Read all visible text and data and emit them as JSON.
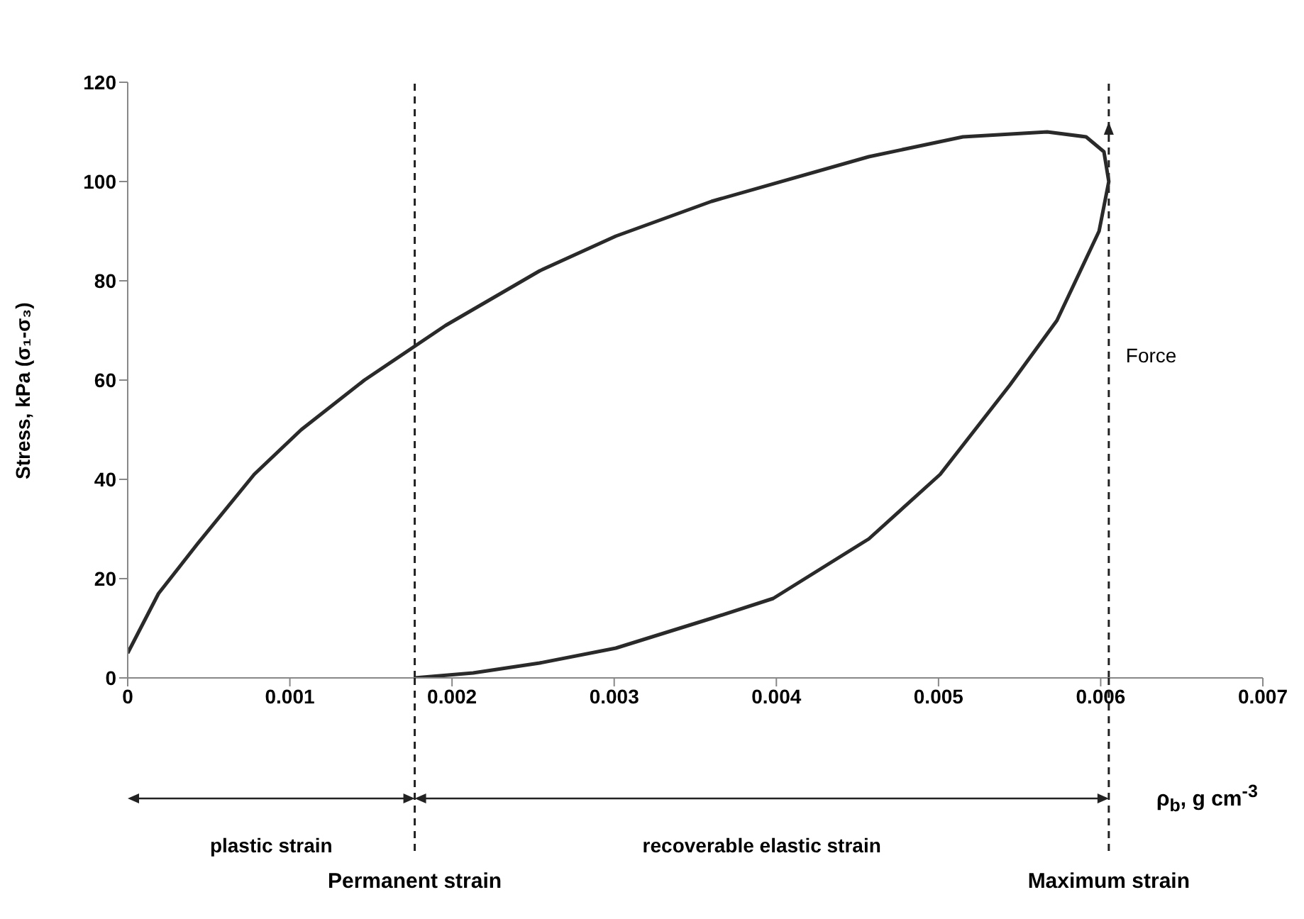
{
  "chart_data": {
    "type": "line",
    "xlabel": "ρ$_{b}$, g cm$^{-3}$",
    "ylabel": "Stress, kPa (σ₁-σ₃)",
    "x": [
      0,
      0.00019,
      0.00043,
      0.00078,
      0.00107,
      0.00146,
      0.00196,
      0.00254,
      0.00301,
      0.0036,
      0.00457,
      0.00515,
      0.00567,
      0.00591,
      0.00602,
      0.00605,
      0.00599,
      0.00573,
      0.00544,
      0.00501,
      0.00457,
      0.00398,
      0.0036,
      0.00301,
      0.00254,
      0.00213,
      0.00177
    ],
    "series": [
      {
        "color": "#2a2a2a",
        "values": [
          5,
          17,
          27,
          41,
          50,
          60,
          71,
          82,
          89,
          96,
          105,
          109,
          110,
          109,
          106,
          100,
          90,
          72,
          59,
          41,
          28,
          16,
          12,
          6,
          3,
          1,
          0
        ]
      }
    ],
    "xlim": [
      0,
      0.007
    ],
    "xticks": [
      0,
      0.001,
      0.002,
      0.003,
      0.004,
      0.005,
      0.006,
      0.007
    ],
    "ylim": [
      0,
      120
    ],
    "yticks": [
      0,
      20,
      40,
      60,
      80,
      100,
      120
    ],
    "marker": "none",
    "line_style": "solid",
    "ref_lines": [
      {
        "axis": "x",
        "value": 0.00177,
        "label": "Permanent strain",
        "line_style": "dashed"
      },
      {
        "axis": "x",
        "value": 0.00605,
        "label": "Maximum strain",
        "line_style": "dashed"
      }
    ],
    "annotations": [
      {
        "text": "Force",
        "x": 0.00605,
        "y": 65
      },
      "plastic strain",
      "recoverable elastic strain"
    ]
  }
}
